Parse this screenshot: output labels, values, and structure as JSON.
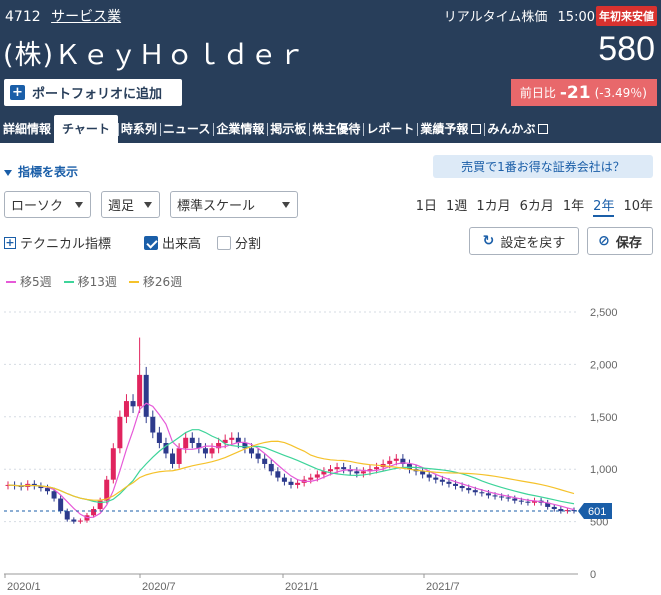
{
  "header": {
    "code": "4712",
    "industry": "サービス業",
    "company": "(株)ＫｅｙＨｏｌｄｅｒ",
    "realtime_label": "リアルタイム株価",
    "time": "15:00",
    "badge": "年初来安値",
    "price": "580",
    "portfolio_button": "ポートフォリオに追加",
    "change_label": "前日比",
    "change_value": "-21",
    "change_pct": "(-3.49％)"
  },
  "tabs": [
    {
      "label": "詳細情報"
    },
    {
      "label": "チャート",
      "active": true
    },
    {
      "label": "時系列"
    },
    {
      "label": "ニュース"
    },
    {
      "label": "企業情報"
    },
    {
      "label": "掲示板"
    },
    {
      "label": "株主優待"
    },
    {
      "label": "レポート"
    },
    {
      "label": "業績予報",
      "icon": "external-link-icon"
    },
    {
      "label": "みんかぶ",
      "icon": "external-link-icon"
    }
  ],
  "controls": {
    "indicator_toggle": "指標を表示",
    "broker_banner": "売買で1番お得な証券会社は？",
    "chart_type": "ローソク",
    "period": "週足",
    "scale": "標準スケール",
    "ranges": [
      "1日",
      "1週",
      "1カ月",
      "6カ月",
      "1年",
      "2年",
      "10年"
    ],
    "active_range": "2年",
    "technical": "テクニカル指標",
    "volume": "出来高",
    "volume_checked": true,
    "split": "分割",
    "split_checked": false,
    "reset": "設定を戻す",
    "save": "保存"
  },
  "colors": {
    "header_bg": "#283e5a",
    "accent": "#1a5ea8",
    "up": "#e0245e",
    "down": "#2d3a8c",
    "ma5": "#e659d8",
    "ma13": "#3ed49a",
    "ma26": "#f5c22b"
  },
  "chart_data": {
    "type": "candlestick",
    "legend": [
      "移5週",
      "移13週",
      "移26週"
    ],
    "y_ticks": [
      "2,500",
      "2,000",
      "1,500",
      "1,000",
      "500",
      "0"
    ],
    "y_values": [
      2500,
      2000,
      1500,
      1000,
      500,
      0
    ],
    "x_ticks": [
      "2020/1",
      "2020/7",
      "2021/1",
      "2021/7"
    ],
    "ylim": [
      0,
      2500
    ],
    "last_marker": "601",
    "last_value": 601,
    "closes": [
      850,
      840,
      830,
      860,
      840,
      820,
      790,
      720,
      600,
      520,
      500,
      510,
      560,
      620,
      700,
      900,
      1200,
      1500,
      1650,
      1600,
      1900,
      1500,
      1350,
      1250,
      1150,
      1050,
      1200,
      1300,
      1250,
      1200,
      1150,
      1200,
      1250,
      1280,
      1300,
      1250,
      1200,
      1150,
      1100,
      1050,
      980,
      920,
      880,
      850,
      870,
      900,
      920,
      950,
      980,
      1000,
      1020,
      1000,
      980,
      960,
      980,
      1000,
      1020,
      1050,
      1080,
      1100,
      1050,
      1000,
      980,
      950,
      920,
      900,
      880,
      860,
      840,
      820,
      800,
      780,
      770,
      750,
      740,
      730,
      720,
      700,
      690,
      680,
      700,
      680,
      640,
      620,
      600,
      610,
      601
    ]
  }
}
